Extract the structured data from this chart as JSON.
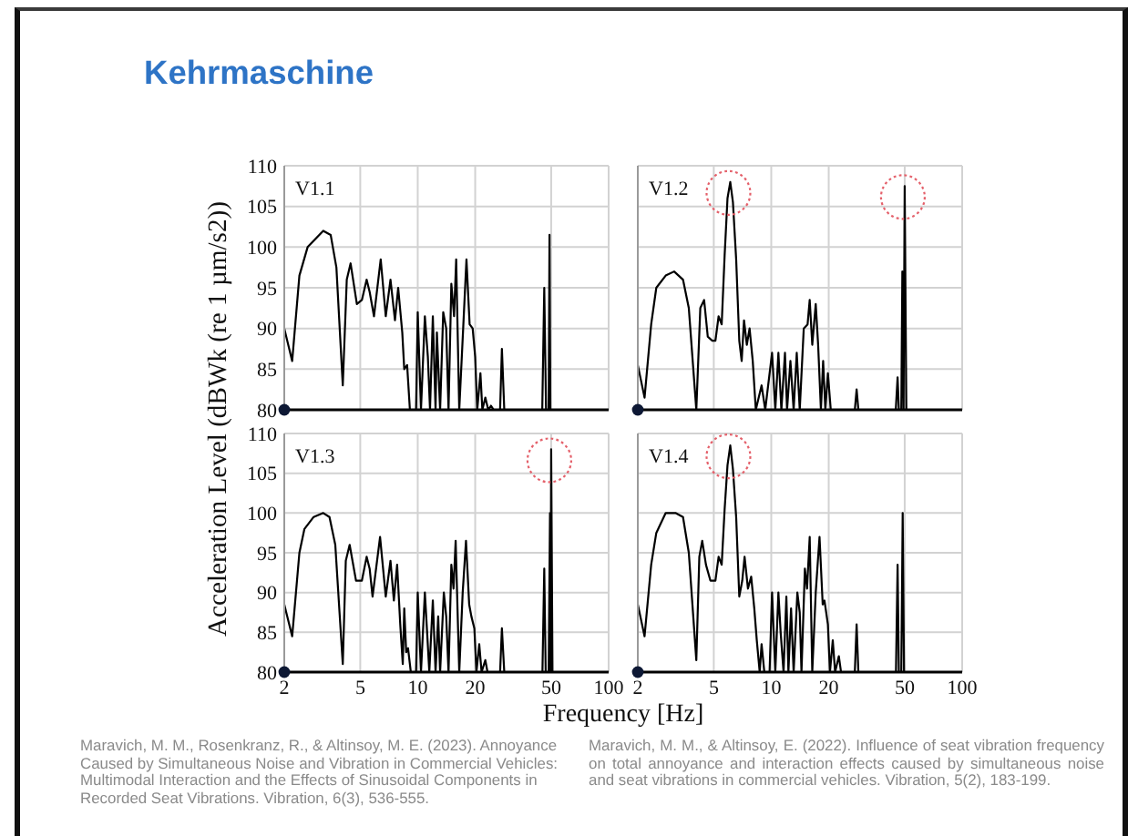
{
  "chart_data": [
    {
      "type": "other",
      "title": "Kehrmaschine"
    },
    {
      "type": "line",
      "title": "V1.1",
      "ylabel": "Acceleration Level (dBWk (re 1 µm/s2))",
      "color": "#000000",
      "log": "x",
      "grid": true,
      "tick_labels": "y",
      "xlim": [
        2,
        100
      ],
      "xticks": [
        2,
        5,
        10,
        20,
        50,
        100
      ],
      "ylim": [
        80,
        110
      ],
      "yticks": [
        80,
        85,
        90,
        95,
        100,
        105,
        110
      ],
      "x": [
        2,
        2.2,
        2.4,
        2.65,
        3.2,
        3.5,
        3.75,
        4.05,
        4.25,
        4.45,
        4.8,
        5.1,
        5.4,
        5.6,
        5.9,
        6.4,
        6.8,
        7.2,
        7.6,
        7.9,
        8.3,
        8.5,
        8.8,
        9.1,
        9.8,
        10,
        10.4,
        10.9,
        11.3,
        11.6,
        12,
        12.4,
        12.6,
        13.1,
        13.6,
        14.1,
        14.5,
        15,
        15.5,
        15.9,
        16.5,
        17.3,
        18,
        18.7,
        19.4,
        20,
        20.5,
        21.3,
        21.8,
        22.6,
        23.4,
        24.2,
        25,
        27,
        27.6,
        28.4,
        44.9,
        46,
        47,
        48.5,
        49,
        49.5,
        100
      ],
      "values": [
        90,
        86,
        96.5,
        100,
        102,
        101.5,
        97.5,
        83,
        96,
        98,
        93,
        93.5,
        96,
        94.5,
        91.5,
        98.5,
        91.5,
        96,
        91,
        95,
        89.5,
        85,
        85.5,
        80,
        80,
        92,
        80,
        91.5,
        86.5,
        80,
        91.5,
        80,
        89.5,
        80,
        92,
        90,
        80,
        95.5,
        91.5,
        98.5,
        80,
        90,
        98.5,
        90.5,
        90,
        86.5,
        80,
        84.5,
        80,
        81.5,
        80,
        80.5,
        80,
        80,
        87.5,
        80,
        80,
        95,
        80,
        80,
        101.5,
        80,
        80
      ]
    },
    {
      "type": "line",
      "title": "V1.2",
      "color": "#000000",
      "log": "x",
      "grid": true,
      "tick_labels": false,
      "xlim": [
        2,
        100
      ],
      "xticks": [
        2,
        5,
        10,
        20,
        50,
        100
      ],
      "ylim": [
        80,
        110
      ],
      "yticks": [
        80,
        85,
        90,
        95,
        100,
        105,
        110
      ],
      "x": [
        2,
        2.17,
        2.35,
        2.5,
        2.8,
        3.1,
        3.45,
        3.7,
        4.05,
        4.25,
        4.45,
        4.65,
        4.9,
        5.1,
        5.3,
        5.5,
        5.7,
        5.9,
        6.1,
        6.3,
        6.55,
        6.8,
        7,
        7.2,
        7.45,
        7.7,
        8,
        8.3,
        8.9,
        9.3,
        10.1,
        10.5,
        10.9,
        11.3,
        11.8,
        12.1,
        12.6,
        13.1,
        13.6,
        14.1,
        14.8,
        15.5,
        15.9,
        16.4,
        17.1,
        17.6,
        18.2,
        18.7,
        19.2,
        19.8,
        20.5,
        27.4,
        28,
        28.6,
        44.9,
        45.9,
        46.6,
        48,
        48.6,
        49.3,
        50,
        51,
        100
      ],
      "values": [
        85.5,
        81.5,
        90.5,
        95,
        96.5,
        97,
        96,
        92.5,
        80,
        92.5,
        93.5,
        89,
        88.5,
        88.5,
        91.5,
        90.5,
        99,
        106,
        108,
        105.5,
        98.5,
        88.5,
        86,
        91,
        88,
        90,
        86,
        80,
        83,
        80,
        87,
        80,
        87,
        80,
        87,
        80,
        86,
        80,
        87,
        80,
        90,
        90.5,
        93.5,
        88,
        93,
        88,
        80,
        86,
        80,
        84.5,
        80,
        80,
        82.5,
        80,
        80,
        84,
        80,
        80,
        97,
        80,
        107.5,
        80,
        80
      ]
    },
    {
      "type": "line",
      "title": "V1.3",
      "xlabel": "Frequency [Hz]",
      "color": "#000000",
      "log": "x",
      "grid": true,
      "xlim": [
        2,
        100
      ],
      "xticks": [
        2,
        5,
        10,
        20,
        50,
        100
      ],
      "ylim": [
        80,
        110
      ],
      "yticks": [
        80,
        85,
        90,
        95,
        100,
        105,
        110
      ],
      "x": [
        2,
        2.2,
        2.4,
        2.55,
        2.85,
        3.2,
        3.45,
        3.7,
        4.05,
        4.2,
        4.4,
        4.75,
        5.1,
        5.4,
        5.6,
        5.8,
        6.35,
        6.8,
        7.2,
        7.5,
        7.8,
        8.1,
        8.35,
        8.5,
        8.7,
        8.9,
        9.2,
        9.8,
        10,
        10.4,
        10.9,
        11.2,
        11.5,
        12,
        12.4,
        12.8,
        13.1,
        13.7,
        14.1,
        14.5,
        15,
        15.4,
        15.8,
        16.5,
        17.2,
        17.9,
        18.6,
        19.1,
        19.8,
        20.3,
        21,
        21.6,
        22.6,
        23.2,
        27,
        27.6,
        28.4,
        45,
        46,
        46.8,
        48.5,
        49.3,
        49.6,
        50,
        50.8,
        100
      ],
      "values": [
        88.5,
        84.5,
        95,
        98,
        99.5,
        100,
        99.5,
        96,
        81,
        94,
        96,
        91.5,
        91.5,
        94.5,
        93,
        89.5,
        97,
        89.5,
        94,
        89,
        93.5,
        86,
        81,
        88,
        82.5,
        83,
        80,
        80,
        90,
        80,
        90,
        85,
        80,
        89,
        80,
        87,
        80,
        90,
        87,
        80,
        93.5,
        90.5,
        96.5,
        80,
        90,
        96.5,
        88.5,
        87,
        85.5,
        80,
        83.5,
        80,
        81.5,
        80,
        80,
        85.5,
        80,
        80,
        93,
        80,
        80,
        100,
        80,
        108,
        80,
        80
      ]
    },
    {
      "type": "line",
      "title": "V1.4",
      "color": "#000000",
      "log": "x",
      "grid": true,
      "tick_labels": "x",
      "xlim": [
        2,
        100
      ],
      "xticks": [
        2,
        5,
        10,
        20,
        50,
        100
      ],
      "ylim": [
        80,
        110
      ],
      "yticks": [
        80,
        85,
        90,
        95,
        100,
        105,
        110
      ],
      "x": [
        2,
        2.17,
        2.35,
        2.5,
        2.8,
        3.15,
        3.45,
        3.7,
        4.05,
        4.2,
        4.35,
        4.55,
        4.8,
        5.1,
        5.3,
        5.5,
        5.7,
        5.9,
        6.1,
        6.3,
        6.55,
        6.8,
        7.05,
        7.25,
        7.55,
        7.85,
        8.15,
        8.4,
        8.7,
        8.9,
        9.2,
        9.8,
        10.1,
        10.5,
        10.9,
        11.2,
        11.6,
        12,
        12.3,
        12.7,
        13.1,
        13.7,
        14.1,
        14.4,
        15,
        15.4,
        15.9,
        16.4,
        17.1,
        17.9,
        18.6,
        19,
        19.8,
        20.3,
        21,
        21.6,
        22.6,
        23.2,
        27.4,
        28,
        28.6,
        45,
        45.9,
        46.6,
        48,
        48.8,
        49.6,
        100
      ],
      "values": [
        88.5,
        84.5,
        93.5,
        97.5,
        100,
        100,
        99.5,
        95,
        81.5,
        94.5,
        96.5,
        93.5,
        91.5,
        91.5,
        94.5,
        93.5,
        100.5,
        106,
        108.5,
        105.5,
        99.5,
        89.5,
        91.5,
        94.5,
        90.5,
        92,
        88,
        84,
        80,
        83.5,
        80,
        80,
        90,
        80,
        90,
        85,
        80,
        89.5,
        80,
        88,
        80,
        90,
        87.5,
        80,
        93,
        90.5,
        97,
        80,
        90,
        97,
        88.5,
        89,
        86,
        80,
        84,
        80,
        82,
        80,
        80,
        86,
        80,
        80,
        93.5,
        80,
        80,
        100,
        80,
        80
      ]
    },
    {
      "type": "other",
      "annotations": [
        "Maravich, M. M., Rosenkranz, R., & Altinsoy, M. E. (2023). Annoyance Caused by Simultaneous Noise and Vibration in Commercial Vehicles: Multimodal Interaction and the Effects of Sinusoidal Components in Recorded Seat Vibrations. Vibration, 6(3), 536-555.",
        "Maravich, M. M., & Altinsoy, E. (2022). Influence of seat vibration frequency on total annoyance and interaction effects caused by simultaneous noise and seat vibrations in commercial vehicles. Vibration, 5(2), 183-199."
      ]
    }
  ]
}
